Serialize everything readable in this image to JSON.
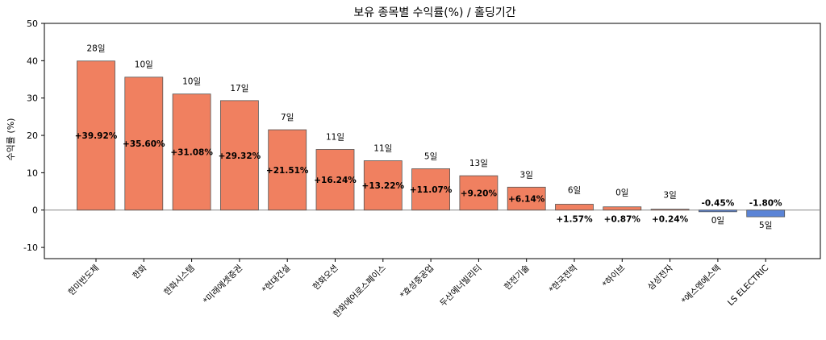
{
  "chart_data": {
    "type": "bar",
    "title": "보유 종목별 수익률(%) / 홀딩기간",
    "xlabel": "",
    "ylabel": "수익률 (%)",
    "ylim": [
      -13,
      50
    ],
    "yticks": [
      -10,
      0,
      10,
      20,
      30,
      40,
      50
    ],
    "grid": false,
    "categories": [
      "한미반도체",
      "한화",
      "한화시스템",
      "*미래에셋증권",
      "*현대건설",
      "한화오션",
      "한화에어로스페이스",
      "*효성중공업",
      "두산에너빌리티",
      "한전기술",
      "*한국전력",
      "*하이브",
      "삼성전자",
      "*에스엔에스텍",
      "LS ELECTRIC"
    ],
    "values": [
      39.92,
      35.6,
      31.08,
      29.32,
      21.51,
      16.24,
      13.22,
      11.07,
      9.2,
      6.14,
      1.57,
      0.87,
      0.24,
      -0.45,
      -1.8
    ],
    "value_labels": [
      "+39.92%",
      "+35.60%",
      "+31.08%",
      "+29.32%",
      "+21.51%",
      "+16.24%",
      "+13.22%",
      "+11.07%",
      "+9.20%",
      "+6.14%",
      "+1.57%",
      "+0.87%",
      "+0.24%",
      "-0.45%",
      "-1.80%"
    ],
    "holding_labels": [
      "28일",
      "10일",
      "10일",
      "17일",
      "7일",
      "11일",
      "11일",
      "5일",
      "13일",
      "3일",
      "6일",
      "0일",
      "3일",
      "0일",
      "5일"
    ],
    "colors": {
      "positive": "#f08060",
      "negative": "#5b84d6",
      "edge": "#555555",
      "zero_line": "#888888"
    }
  }
}
